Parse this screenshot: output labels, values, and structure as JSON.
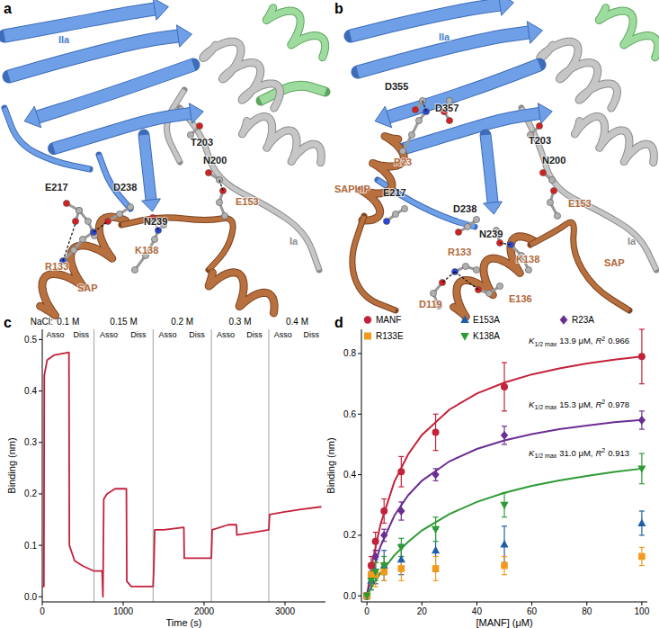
{
  "panel_letters": [
    "a",
    "b",
    "c",
    "d"
  ],
  "structures": [
    {
      "labels": [
        "IIa",
        "Ia",
        "T203",
        "N200",
        "E217",
        "D238",
        "N239",
        "E153",
        "R133",
        "K138",
        "SAP"
      ]
    },
    {
      "labels": [
        "IIa",
        "D355",
        "D357",
        "R23",
        "SAPLIP",
        "T203",
        "N200",
        "E217",
        "D238",
        "E153",
        "Ia",
        "N239",
        "R133",
        "K138",
        "E136",
        "D119",
        "SAP"
      ]
    }
  ],
  "chart_data": [
    {
      "type": "line",
      "x_label": "Time (s)",
      "y_label": "Binding (nm)",
      "xlim": [
        0,
        3500
      ],
      "xticks": [
        0,
        1000,
        2000,
        3000
      ],
      "ylim": [
        -0.01,
        0.52
      ],
      "yticks": [
        {
          "value": 0,
          "label": "0.0"
        },
        {
          "value": 0.1,
          "label": "0.1"
        },
        {
          "value": 0.2,
          "label": "0.2"
        },
        {
          "value": 0.3,
          "label": "0.3"
        },
        {
          "value": 0.4,
          "label": "0.4"
        },
        {
          "value": 0.5,
          "label": "0.5"
        }
      ],
      "condition_label": "NaCl:",
      "conditions": [
        {
          "label": "0.1 M",
          "start": 0,
          "end": 640
        },
        {
          "label": "0.15 M",
          "start": 640,
          "end": 1370
        },
        {
          "label": "0.2 M",
          "start": 1370,
          "end": 2090
        },
        {
          "label": "0.3 M",
          "start": 2090,
          "end": 2800
        },
        {
          "label": "0.4 M",
          "start": 2800,
          "end": 3500
        }
      ],
      "phase_labels": [
        "Asso",
        "Diss"
      ],
      "series": [
        {
          "color": "#c4213b",
          "x": [
            0,
            20,
            25,
            60,
            150,
            330,
            335,
            400,
            500,
            640,
            740,
            750,
            760,
            800,
            900,
            1000,
            1040,
            1045,
            1100,
            1200,
            1370,
            1380,
            1390,
            1500,
            1750,
            1755,
            1900,
            2090,
            2100,
            2300,
            2400,
            2405,
            2600,
            2800,
            2810,
            3000,
            3200,
            3450
          ],
          "values": [
            0.02,
            0.02,
            0.43,
            0.46,
            0.47,
            0.475,
            0.1,
            0.07,
            0.06,
            0.05,
            0.05,
            0.0,
            0.19,
            0.2,
            0.21,
            0.21,
            0.21,
            0.03,
            0.02,
            0.02,
            0.02,
            0.06,
            0.13,
            0.13,
            0.135,
            0.075,
            0.075,
            0.075,
            0.13,
            0.14,
            0.14,
            0.12,
            0.125,
            0.13,
            0.16,
            0.165,
            0.17,
            0.175
          ]
        }
      ]
    },
    {
      "type": "scatter",
      "x_label": "[MANF] (μM)",
      "y_label": "Binding (nm)",
      "legend": "top",
      "xlim": [
        -2,
        102
      ],
      "xticks": [
        0,
        20,
        40,
        60,
        80,
        100
      ],
      "ylim": [
        -0.02,
        0.88
      ],
      "yticks": [
        {
          "value": 0,
          "label": "0.0"
        },
        {
          "value": 0.2,
          "label": "0.2"
        },
        {
          "value": 0.4,
          "label": "0.4"
        },
        {
          "value": 0.6,
          "label": "0.6"
        },
        {
          "value": 0.8,
          "label": "0.8"
        }
      ],
      "series": [
        {
          "name": "MANF",
          "color": "#c4213b",
          "marker": "circle",
          "x": [
            0,
            1.5625,
            3.125,
            6.25,
            12.5,
            25,
            50,
            100
          ],
          "values": [
            0,
            0.1,
            0.18,
            0.28,
            0.41,
            0.54,
            0.69,
            0.79
          ],
          "errors": [
            0.01,
            0.03,
            0.03,
            0.04,
            0.05,
            0.06,
            0.08,
            0.09
          ],
          "fit": {
            "x": [
              0,
              2,
              5,
              10,
              15,
              20,
              30,
              40,
              50,
              60,
              70,
              80,
              90,
              100
            ],
            "values": [
              0,
              0.113,
              0.238,
              0.377,
              0.467,
              0.531,
              0.615,
              0.668,
              0.704,
              0.731,
              0.751,
              0.767,
              0.78,
              0.79
            ]
          },
          "annotation": {
            "symbol": "K",
            "subscript": "1/2 max",
            "value": "13.9 μM,",
            "r_symbol": "R",
            "r_superscript": "2",
            "r_value": "0.966"
          }
        },
        {
          "name": "E153A",
          "color": "#1f5fa6",
          "marker": "triangle",
          "x": [
            0,
            1.5625,
            3.125,
            6.25,
            12.5,
            25,
            50,
            100
          ],
          "values": [
            0,
            0.05,
            0.08,
            0.1,
            0.12,
            0.15,
            0.17,
            0.24
          ],
          "errors": [
            0.01,
            0.03,
            0.04,
            0.05,
            0.05,
            0.07,
            0.06,
            0.04
          ]
        },
        {
          "name": "R23A",
          "color": "#6b2f93",
          "marker": "diamond",
          "x": [
            0,
            1.5625,
            3.125,
            6.25,
            12.5,
            25,
            50,
            100
          ],
          "values": [
            0,
            0.07,
            0.13,
            0.2,
            0.28,
            0.4,
            0.53,
            0.58
          ],
          "errors": [
            0.01,
            0.02,
            0.02,
            0.02,
            0.03,
            0.02,
            0.03,
            0.03
          ],
          "fit": {
            "x": [
              0,
              2,
              5,
              10,
              15,
              20,
              30,
              40,
              50,
              60,
              70,
              80,
              90,
              100
            ],
            "values": [
              0,
              0.077,
              0.165,
              0.265,
              0.332,
              0.38,
              0.444,
              0.485,
              0.513,
              0.534,
              0.55,
              0.562,
              0.573,
              0.581
            ]
          },
          "annotation": {
            "symbol": "K",
            "subscript": "1/2 max",
            "value": "15.3 μM,",
            "r_symbol": "R",
            "r_superscript": "2",
            "r_value": "0.978"
          }
        },
        {
          "name": "R133E",
          "color": "#f39a1e",
          "marker": "square",
          "x": [
            0,
            1.5625,
            3.125,
            6.25,
            12.5,
            25,
            50,
            100
          ],
          "values": [
            0,
            0.07,
            0.07,
            0.08,
            0.09,
            0.09,
            0.1,
            0.13
          ],
          "errors": [
            0.01,
            0.03,
            0.04,
            0.03,
            0.04,
            0.04,
            0.03,
            0.03
          ]
        },
        {
          "name": "K138A",
          "color": "#2e9a35",
          "marker": "triangle-down",
          "x": [
            0,
            1.5625,
            3.125,
            6.25,
            12.5,
            25,
            50,
            100
          ],
          "values": [
            0,
            0.05,
            0.08,
            0.1,
            0.16,
            0.22,
            0.3,
            0.42
          ],
          "errors": [
            0.01,
            0.03,
            0.03,
            0.03,
            0.03,
            0.04,
            0.04,
            0.05
          ],
          "fit": {
            "x": [
              0,
              2,
              5,
              10,
              15,
              20,
              30,
              40,
              50,
              60,
              70,
              80,
              90,
              100
            ],
            "values": [
              0,
              0.033,
              0.076,
              0.134,
              0.178,
              0.216,
              0.27,
              0.31,
              0.34,
              0.363,
              0.381,
              0.396,
              0.409,
              0.42
            ]
          },
          "annotation": {
            "symbol": "K",
            "subscript": "1/2 max",
            "value": "31.0 μM,",
            "r_symbol": "R",
            "r_superscript": "2",
            "r_value": "0.913"
          }
        }
      ]
    }
  ]
}
